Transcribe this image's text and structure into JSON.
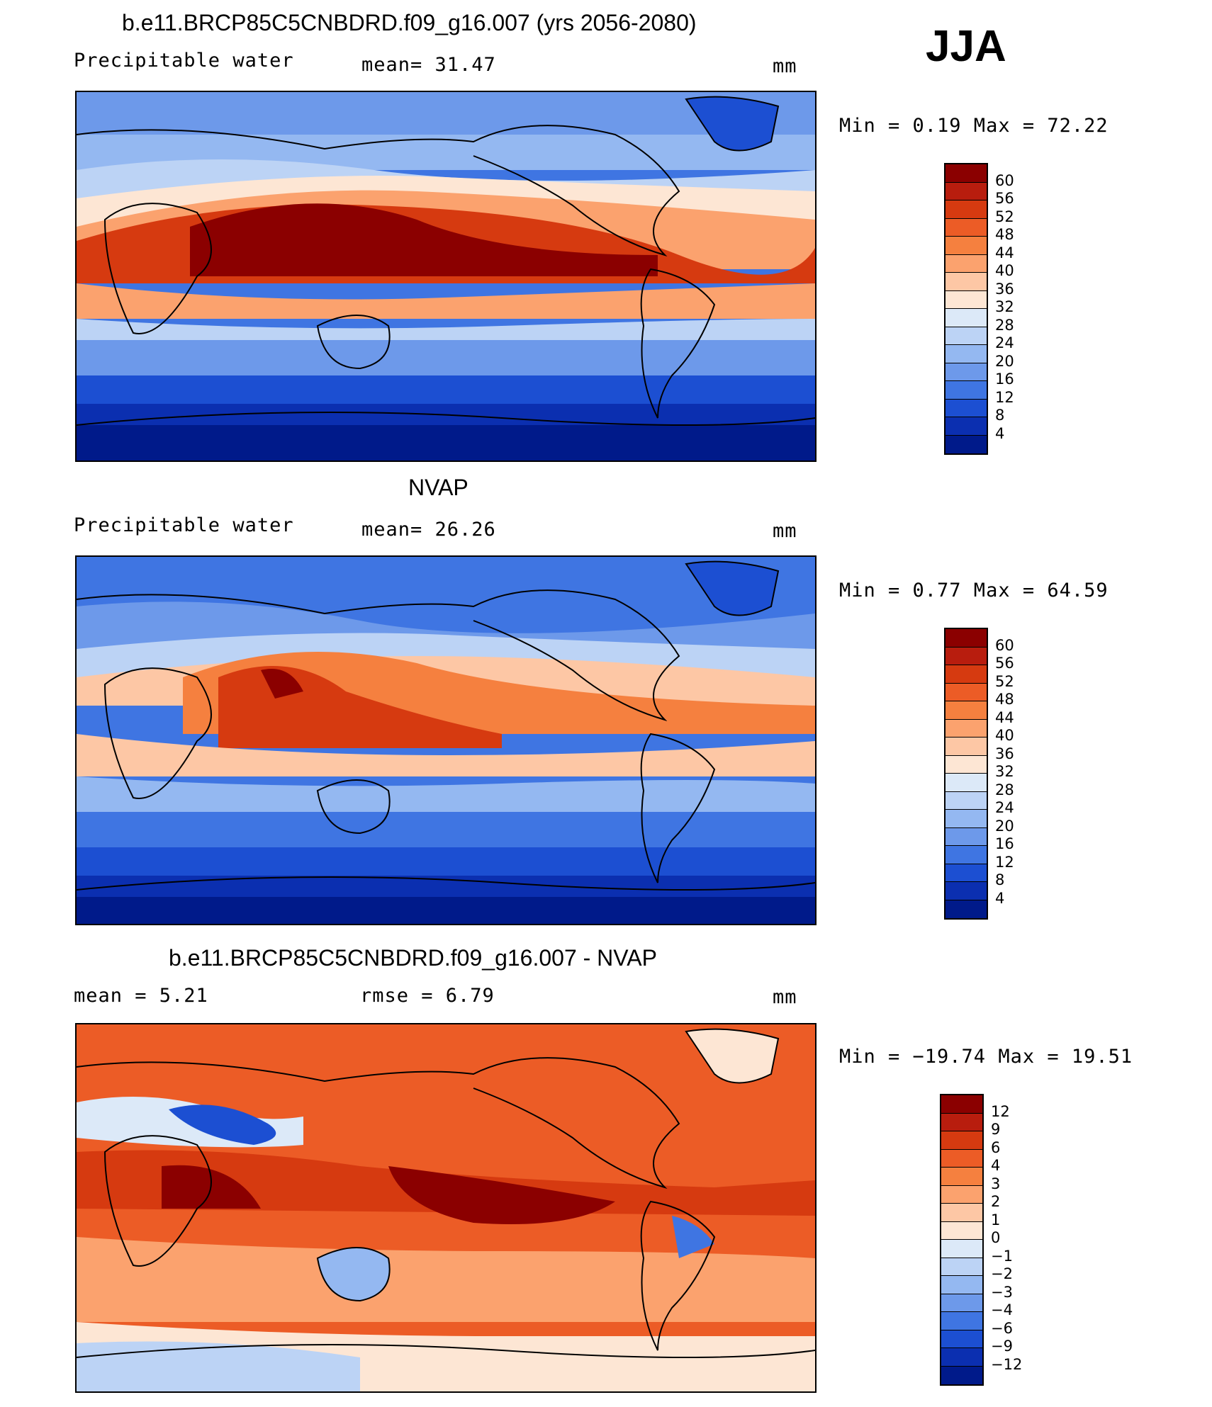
{
  "season": "JJA",
  "panels": [
    {
      "title": "b.e11.BRCP85C5CNBDRD.f09_g16.007 (yrs 2056-2080)",
      "left": "Precipitable water",
      "center": "mean=  31.47",
      "units": "mm",
      "minmax": "Min =    0.19  Max =   72.22",
      "colorbar_labels": [
        "60",
        "56",
        "52",
        "48",
        "44",
        "40",
        "36",
        "32",
        "28",
        "24",
        "20",
        "16",
        "12",
        "8",
        "4"
      ]
    },
    {
      "title": "NVAP",
      "left": "Precipitable water",
      "center": "mean=  26.26",
      "units": "mm",
      "minmax": "Min =    0.77  Max =   64.59",
      "colorbar_labels": [
        "60",
        "56",
        "52",
        "48",
        "44",
        "40",
        "36",
        "32",
        "28",
        "24",
        "20",
        "16",
        "12",
        "8",
        "4"
      ]
    },
    {
      "title": "b.e11.BRCP85C5CNBDRD.f09_g16.007 - NVAP",
      "left": "mean =    5.21",
      "center": "rmse =    6.79",
      "units": "mm",
      "minmax": "Min = −19.74  Max =   19.51",
      "colorbar_labels": [
        "12",
        "9",
        "6",
        "4",
        "3",
        "2",
        "1",
        "0",
        "−1",
        "−2",
        "−3",
        "−4",
        "−6",
        "−9",
        "−12"
      ]
    }
  ],
  "colors": {
    "abs_scale": [
      "#8b0000",
      "#b81d0e",
      "#d63a10",
      "#ec5c26",
      "#f5803f",
      "#fba26e",
      "#fdc7a5",
      "#fde6d4",
      "#dce9f8",
      "#bcd3f5",
      "#94b8f1",
      "#6d99ea",
      "#3f75e2",
      "#1c4fd2",
      "#0b2fb0",
      "#001a8a"
    ],
    "diff_scale": [
      "#8b0000",
      "#b81d0e",
      "#d63a10",
      "#ec5c26",
      "#f5803f",
      "#fba26e",
      "#fdc7a5",
      "#fde6d4",
      "#dce9f8",
      "#bcd3f5",
      "#94b8f1",
      "#6d99ea",
      "#3f75e2",
      "#1c4fd2",
      "#0b2fb0",
      "#001a8a"
    ]
  }
}
